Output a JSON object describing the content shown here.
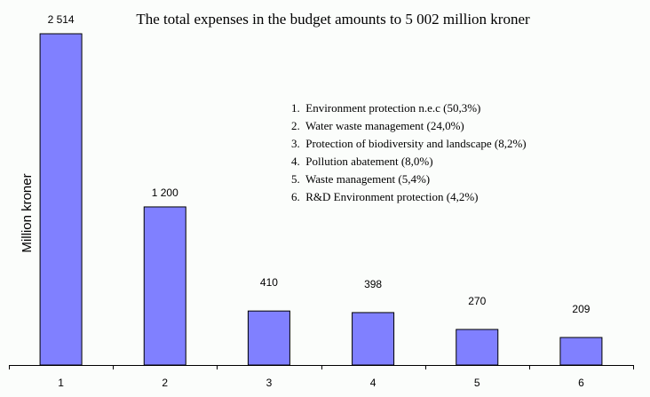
{
  "chart_data": {
    "type": "bar",
    "title": "The total expenses in the budget amounts to 5 002 million kroner",
    "xlabel": "",
    "ylabel": "Million kroner",
    "categories": [
      "1",
      "2",
      "3",
      "4",
      "5",
      "6"
    ],
    "values": [
      2514,
      1200,
      410,
      398,
      270,
      209
    ],
    "data_labels": [
      "2 514",
      "1 200",
      "410",
      "398",
      "270",
      "209"
    ],
    "ylim": [
      0,
      2514
    ],
    "grid": false,
    "bar_color": "#8080ff",
    "legend_placement": "top-right",
    "legend": [
      "1.  Environment protection n.e.c (50,3%)",
      "2.  Water waste management (24,0%)",
      "3.  Protection of biodiversity and landscape (8,2%)",
      "4.  Pollution abatement (8,0%)",
      "5.  Waste management (5,4%)",
      "6.  R&D Environment protection (4,2%)"
    ]
  }
}
